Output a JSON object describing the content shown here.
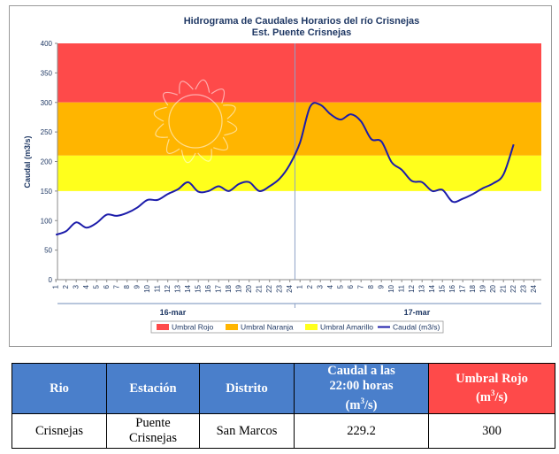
{
  "chart_data": {
    "type": "line",
    "title": "Hidrograma de Caudales Horarios del río Crisnejas",
    "subtitle": "Est. Puente Crisnejas",
    "ylabel": "Caudal  (m3/s)",
    "ylim": [
      0,
      400
    ],
    "yticks": [
      0,
      50,
      100,
      150,
      200,
      250,
      300,
      350,
      400
    ],
    "x_tick_labels": [
      "1",
      "2",
      "3",
      "4",
      "5",
      "6",
      "7",
      "8",
      "9",
      "10",
      "11",
      "12",
      "13",
      "14",
      "15",
      "16",
      "17",
      "18",
      "19",
      "20",
      "21",
      "22",
      "23",
      "24",
      "1",
      "2",
      "3",
      "4",
      "5",
      "6",
      "7",
      "8",
      "9",
      "10",
      "11",
      "12",
      "13",
      "14",
      "15",
      "16",
      "17",
      "18",
      "19",
      "20",
      "21",
      "22",
      "23",
      "24"
    ],
    "days": [
      "16-mar",
      "17-mar"
    ],
    "threshold_bands": [
      {
        "name": "Umbral Rojo",
        "from": 300,
        "to": 400,
        "color": "#fe4a4a"
      },
      {
        "name": "Umbral Naranja",
        "from": 210,
        "to": 300,
        "color": "#ffb500"
      },
      {
        "name": "Umbral Amarillo",
        "from": 150,
        "to": 210,
        "color": "#ffff1c"
      }
    ],
    "series": [
      {
        "name": "Caudal (m3/s)",
        "color": "#1c1caa",
        "values": [
          76,
          82,
          97,
          88,
          96,
          110,
          108,
          113,
          122,
          135,
          135,
          145,
          153,
          165,
          149,
          150,
          158,
          150,
          162,
          165,
          150,
          158,
          171,
          195,
          232,
          293,
          296,
          280,
          271,
          280,
          268,
          238,
          234,
          199,
          186,
          167,
          165,
          150,
          152,
          132,
          137,
          145,
          155,
          163,
          178,
          229
        ]
      }
    ],
    "legend_position": "bottom"
  },
  "table": {
    "headers": {
      "rio": "Rio",
      "estacion": "Estación",
      "distrito": "Distrito",
      "caudal_line1": "Caudal a las",
      "caudal_line2": "22:00 horas",
      "caudal_unit": "(m",
      "caudal_unit_sup": "3",
      "caudal_unit_end": "/s)",
      "umbral_line1": "Umbral Rojo",
      "umbral_unit": "(m",
      "umbral_unit_sup": "3",
      "umbral_unit_end": "/s)"
    },
    "row": {
      "rio": "Crisnejas",
      "estacion_line1": "Puente",
      "estacion_line2": "Crisnejas",
      "distrito": "San Marcos",
      "caudal": "229.2",
      "umbral": "300"
    }
  },
  "colors": {
    "header_blue": "#4a7fcb",
    "header_red": "#fe4a4a"
  }
}
